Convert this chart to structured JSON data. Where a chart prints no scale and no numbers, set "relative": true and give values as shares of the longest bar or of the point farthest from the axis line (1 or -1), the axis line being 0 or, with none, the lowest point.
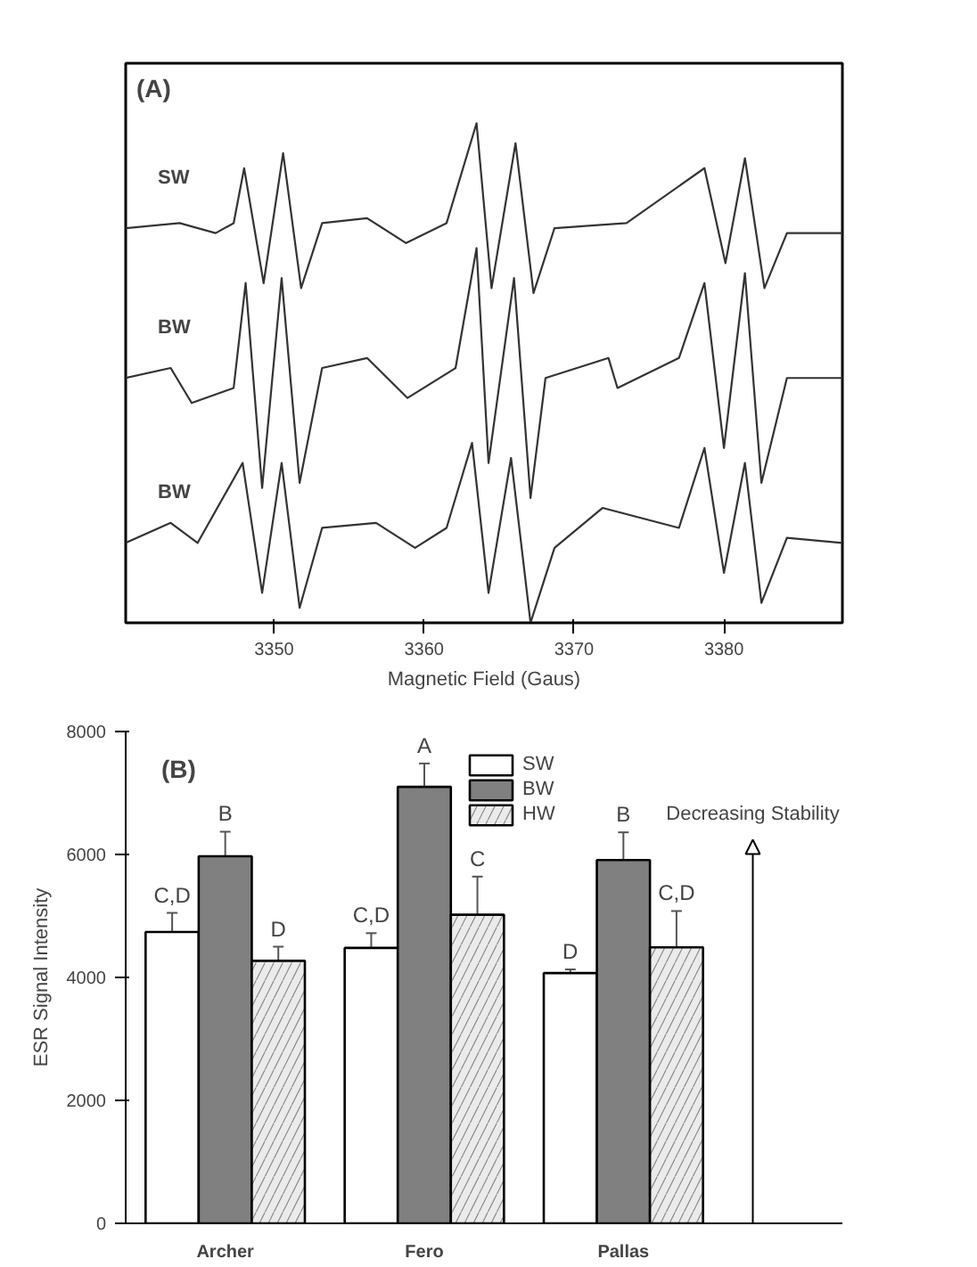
{
  "chart_data": [
    {
      "type": "line",
      "relative": true,
      "xlabel": "Magnetic Field (Gaus)",
      "annotations": [
        "(A)"
      ],
      "xlim": [
        3340.1,
        3387.9
      ],
      "xticks": [
        3350,
        3360,
        3370,
        3380
      ],
      "tick_labels": "x",
      "grid": false,
      "legend": false,
      "marker": "none",
      "line_style": "solid",
      "series": [
        {
          "name": "SW",
          "color": "#333333",
          "x": [
            3340.1,
            3343.7,
            3346.1,
            3347.3,
            3348.0,
            3349.3,
            3350.6,
            3351.8,
            3353.2,
            3356.2,
            3358.8,
            3361.5,
            3363.5,
            3364.5,
            3366.1,
            3367.3,
            3368.7,
            3373.5,
            3378.7,
            3380.1,
            3381.4,
            3382.7,
            3384.2,
            3387.9
          ],
          "values": [
            0.79,
            0.8,
            0.78,
            0.8,
            0.91,
            0.68,
            0.94,
            0.67,
            0.8,
            0.81,
            0.76,
            0.8,
            1.0,
            0.67,
            0.96,
            0.66,
            0.79,
            0.8,
            0.91,
            0.72,
            0.93,
            0.67,
            0.78,
            0.78
          ]
        },
        {
          "name": "BW",
          "color": "#333333",
          "x": [
            3340.1,
            3343.1,
            3344.5,
            3347.3,
            3348.1,
            3349.2,
            3350.5,
            3351.7,
            3353.2,
            3356.2,
            3358.9,
            3362.1,
            3363.5,
            3364.3,
            3366.0,
            3367.1,
            3368.1,
            3372.3,
            3372.9,
            3377.0,
            3378.7,
            3380.0,
            3381.4,
            3382.5,
            3384.2,
            3387.9
          ],
          "values": [
            0.49,
            0.51,
            0.44,
            0.47,
            0.68,
            0.27,
            0.69,
            0.28,
            0.51,
            0.53,
            0.45,
            0.51,
            0.75,
            0.32,
            0.69,
            0.25,
            0.49,
            0.53,
            0.47,
            0.53,
            0.68,
            0.35,
            0.7,
            0.28,
            0.49,
            0.49
          ]
        },
        {
          "name": "BW",
          "color": "#333333",
          "x": [
            3340.1,
            3343.1,
            3344.9,
            3347.9,
            3349.2,
            3350.5,
            3351.7,
            3353.2,
            3356.8,
            3359.4,
            3361.5,
            3363.2,
            3364.3,
            3365.8,
            3367.1,
            3368.7,
            3371.9,
            3377.0,
            3378.7,
            3380.0,
            3381.4,
            3382.5,
            3384.2,
            3387.9
          ],
          "values": [
            0.16,
            0.2,
            0.16,
            0.32,
            0.06,
            0.32,
            0.03,
            0.19,
            0.2,
            0.15,
            0.19,
            0.36,
            0.06,
            0.33,
            0.0,
            0.15,
            0.23,
            0.19,
            0.35,
            0.1,
            0.32,
            0.04,
            0.17,
            0.16
          ]
        }
      ]
    },
    {
      "type": "bar",
      "ylabel": "ESR Signal Intensity",
      "annotations": [
        "(B)",
        "Decreasing Stability"
      ],
      "categories": [
        "Archer",
        "Fero",
        "Pallas"
      ],
      "ylim": [
        0,
        8000
      ],
      "yticks": [
        0,
        2000,
        4000,
        6000,
        8000
      ],
      "grid": false,
      "legend": "top",
      "series": [
        {
          "name": "SW",
          "color": "#ffffff",
          "values": [
            4740,
            4480,
            4070
          ],
          "errors": [
            310,
            240,
            60
          ],
          "value_labels": [
            "C,D",
            "C,D",
            "D"
          ]
        },
        {
          "name": "BW",
          "color": "#808080",
          "values": [
            5970,
            7100,
            5910
          ],
          "errors": [
            400,
            380,
            450
          ],
          "value_labels": [
            "B",
            "A",
            "B"
          ]
        },
        {
          "name": "HW",
          "color": "#ebebeb",
          "values": [
            4270,
            5020,
            4490
          ],
          "errors": [
            230,
            620,
            590
          ],
          "value_labels": [
            "D",
            "C",
            "C,D"
          ]
        }
      ]
    }
  ]
}
